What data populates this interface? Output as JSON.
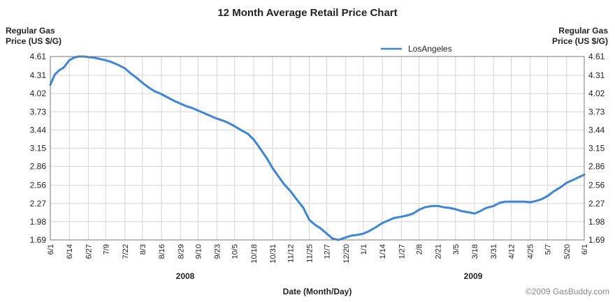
{
  "chart_data": {
    "type": "line",
    "title": "12 Month Average Retail Price Chart",
    "ylabel_left": [
      "Regular Gas",
      "Price (US $/G)"
    ],
    "ylabel_right": [
      "Regular Gas",
      "Price (US $/G)"
    ],
    "xlabel": "Date (Month/Day)",
    "year_labels": [
      "2008",
      "2009"
    ],
    "copyright": "©2009 GasBuddy.com",
    "legend_position": "top-right",
    "grid": true,
    "ylim": [
      1.69,
      4.61
    ],
    "y_ticks": [
      "4.61",
      "4.31",
      "4.02",
      "3.73",
      "3.44",
      "3.15",
      "2.86",
      "2.56",
      "2.27",
      "1.98",
      "1.69"
    ],
    "x_ticks": [
      "6/1",
      "6/14",
      "6/27",
      "7/9",
      "7/22",
      "8/3",
      "8/16",
      "8/29",
      "9/10",
      "9/23",
      "10/5",
      "10/18",
      "10/31",
      "11/12",
      "11/25",
      "12/7",
      "12/20",
      "1/1",
      "1/14",
      "1/27",
      "2/8",
      "2/21",
      "3/5",
      "3/18",
      "3/31",
      "4/12",
      "4/25",
      "5/7",
      "5/20",
      "6/1"
    ],
    "series": [
      {
        "name": "LosAngeles",
        "color": "#3a85e0",
        "points": [
          [
            "6/1",
            4.16
          ],
          [
            "6/4",
            4.32
          ],
          [
            "6/7",
            4.39
          ],
          [
            "6/10",
            4.43
          ],
          [
            "6/14",
            4.55
          ],
          [
            "6/17",
            4.59
          ],
          [
            "6/20",
            4.61
          ],
          [
            "6/24",
            4.61
          ],
          [
            "6/27",
            4.6
          ],
          [
            "7/1",
            4.59
          ],
          [
            "7/5",
            4.57
          ],
          [
            "7/9",
            4.55
          ],
          [
            "7/13",
            4.52
          ],
          [
            "7/17",
            4.48
          ],
          [
            "7/22",
            4.42
          ],
          [
            "7/26",
            4.34
          ],
          [
            "7/30",
            4.27
          ],
          [
            "8/3",
            4.19
          ],
          [
            "8/7",
            4.12
          ],
          [
            "8/11",
            4.06
          ],
          [
            "8/16",
            4.01
          ],
          [
            "8/20",
            3.96
          ],
          [
            "8/25",
            3.9
          ],
          [
            "8/29",
            3.86
          ],
          [
            "9/2",
            3.82
          ],
          [
            "9/6",
            3.79
          ],
          [
            "9/10",
            3.75
          ],
          [
            "9/14",
            3.71
          ],
          [
            "9/19",
            3.66
          ],
          [
            "9/23",
            3.62
          ],
          [
            "9/27",
            3.59
          ],
          [
            "10/1",
            3.55
          ],
          [
            "10/5",
            3.5
          ],
          [
            "10/10",
            3.43
          ],
          [
            "10/14",
            3.38
          ],
          [
            "10/18",
            3.29
          ],
          [
            "10/22",
            3.16
          ],
          [
            "10/27",
            2.99
          ],
          [
            "10/31",
            2.83
          ],
          [
            "11/4",
            2.7
          ],
          [
            "11/8",
            2.57
          ],
          [
            "11/12",
            2.47
          ],
          [
            "11/16",
            2.35
          ],
          [
            "11/21",
            2.2
          ],
          [
            "11/25",
            2.01
          ],
          [
            "11/29",
            1.93
          ],
          [
            "12/3",
            1.87
          ],
          [
            "12/7",
            1.79
          ],
          [
            "12/11",
            1.71
          ],
          [
            "12/15",
            1.69
          ],
          [
            "12/20",
            1.73
          ],
          [
            "12/24",
            1.76
          ],
          [
            "12/28",
            1.77
          ],
          [
            "1/1",
            1.79
          ],
          [
            "1/5",
            1.83
          ],
          [
            "1/10",
            1.9
          ],
          [
            "1/14",
            1.96
          ],
          [
            "1/18",
            2.0
          ],
          [
            "1/22",
            2.04
          ],
          [
            "1/27",
            2.06
          ],
          [
            "1/31",
            2.08
          ],
          [
            "2/4",
            2.11
          ],
          [
            "2/8",
            2.17
          ],
          [
            "2/12",
            2.21
          ],
          [
            "2/17",
            2.23
          ],
          [
            "2/21",
            2.23
          ],
          [
            "2/25",
            2.21
          ],
          [
            "3/1",
            2.2
          ],
          [
            "3/5",
            2.18
          ],
          [
            "3/9",
            2.15
          ],
          [
            "3/14",
            2.13
          ],
          [
            "3/18",
            2.11
          ],
          [
            "3/22",
            2.15
          ],
          [
            "3/26",
            2.2
          ],
          [
            "3/31",
            2.23
          ],
          [
            "4/4",
            2.28
          ],
          [
            "4/8",
            2.3
          ],
          [
            "4/12",
            2.3
          ],
          [
            "4/16",
            2.3
          ],
          [
            "4/21",
            2.3
          ],
          [
            "4/25",
            2.29
          ],
          [
            "4/29",
            2.31
          ],
          [
            "5/3",
            2.34
          ],
          [
            "5/7",
            2.39
          ],
          [
            "5/11",
            2.46
          ],
          [
            "5/16",
            2.53
          ],
          [
            "5/20",
            2.6
          ],
          [
            "5/24",
            2.64
          ],
          [
            "6/1",
            2.73
          ]
        ]
      }
    ]
  }
}
